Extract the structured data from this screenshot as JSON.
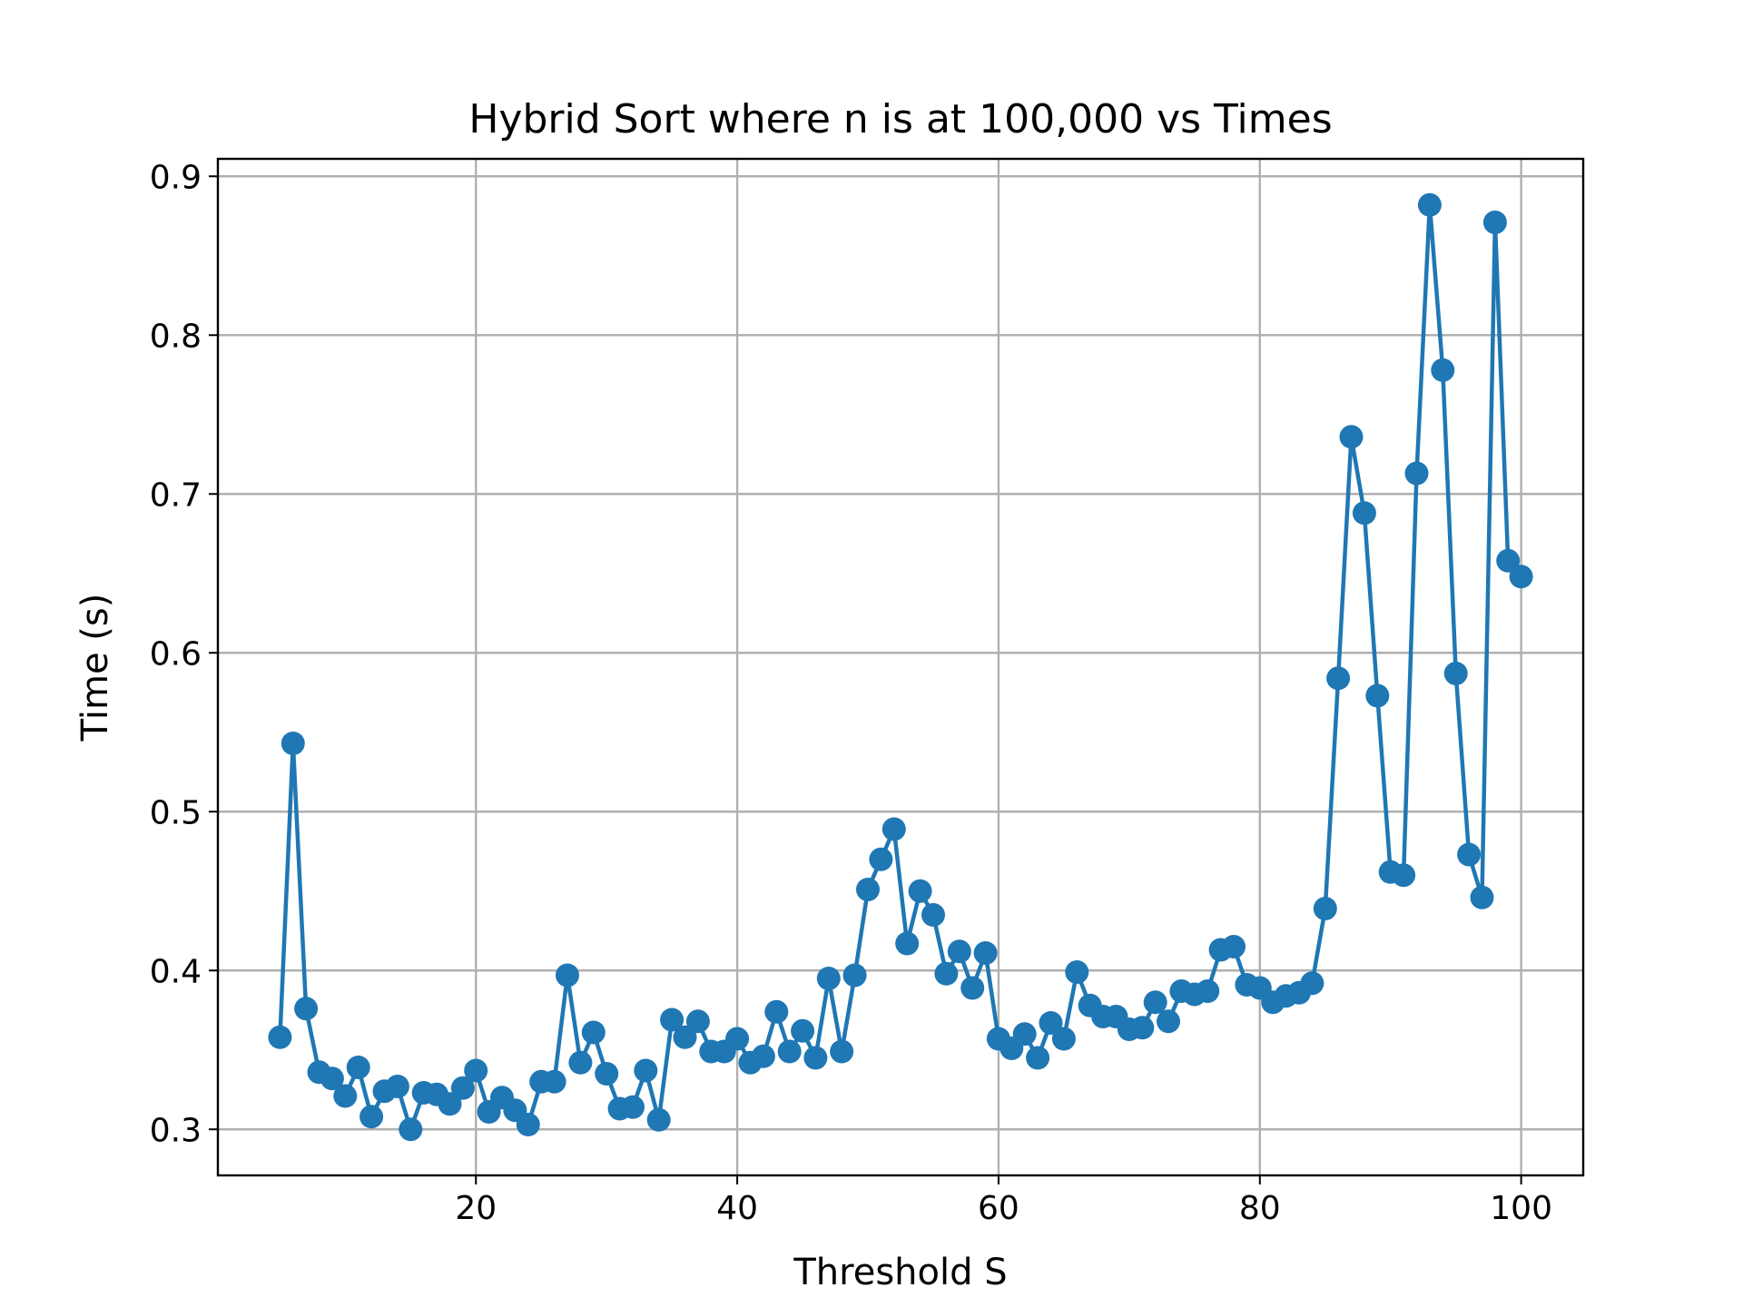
{
  "chart_data": {
    "type": "line",
    "title": "Hybrid Sort where n is at 100,000 vs Times",
    "xlabel": "Threshold S",
    "ylabel": "Time (s)",
    "xlim": [
      0.25,
      104.75
    ],
    "ylim": [
      0.271,
      0.911
    ],
    "xticks": [
      20,
      40,
      60,
      80,
      100
    ],
    "yticks": [
      0.3,
      0.4,
      0.5,
      0.6,
      0.7,
      0.8,
      0.9
    ],
    "xtick_labels": [
      "20",
      "40",
      "60",
      "80",
      "100"
    ],
    "ytick_labels": [
      "0.3",
      "0.4",
      "0.5",
      "0.6",
      "0.7",
      "0.8",
      "0.9"
    ],
    "grid": true,
    "series": [
      {
        "color": "#1f77b4",
        "marker": "circle",
        "x": [
          5,
          6,
          7,
          8,
          9,
          10,
          11,
          12,
          13,
          14,
          15,
          16,
          17,
          18,
          19,
          20,
          21,
          22,
          23,
          24,
          25,
          26,
          27,
          28,
          29,
          30,
          31,
          32,
          33,
          34,
          35,
          36,
          37,
          38,
          39,
          40,
          41,
          42,
          43,
          44,
          45,
          46,
          47,
          48,
          49,
          50,
          51,
          52,
          53,
          54,
          55,
          56,
          57,
          58,
          59,
          60,
          61,
          62,
          63,
          64,
          65,
          66,
          67,
          68,
          69,
          70,
          71,
          72,
          73,
          74,
          75,
          76,
          77,
          78,
          79,
          80,
          81,
          82,
          83,
          84,
          85,
          86,
          87,
          88,
          89,
          90,
          91,
          92,
          93,
          94,
          95,
          96,
          97,
          98,
          99,
          100
        ],
        "y": [
          0.358,
          0.543,
          0.376,
          0.336,
          0.332,
          0.321,
          0.339,
          0.308,
          0.324,
          0.327,
          0.3,
          0.323,
          0.322,
          0.316,
          0.326,
          0.337,
          0.311,
          0.32,
          0.312,
          0.303,
          0.33,
          0.33,
          0.397,
          0.342,
          0.361,
          0.335,
          0.313,
          0.314,
          0.337,
          0.306,
          0.369,
          0.358,
          0.368,
          0.349,
          0.349,
          0.357,
          0.342,
          0.346,
          0.374,
          0.349,
          0.362,
          0.345,
          0.395,
          0.349,
          0.397,
          0.451,
          0.47,
          0.489,
          0.417,
          0.45,
          0.435,
          0.398,
          0.412,
          0.389,
          0.411,
          0.357,
          0.351,
          0.36,
          0.345,
          0.367,
          0.357,
          0.399,
          0.378,
          0.371,
          0.371,
          0.363,
          0.364,
          0.38,
          0.368,
          0.387,
          0.385,
          0.387,
          0.413,
          0.415,
          0.391,
          0.389,
          0.38,
          0.384,
          0.386,
          0.392,
          0.439,
          0.584,
          0.736,
          0.688,
          0.573,
          0.462,
          0.46,
          0.713,
          0.882,
          0.778,
          0.587,
          0.473,
          0.446,
          0.871,
          0.658,
          0.648
        ]
      }
    ]
  }
}
